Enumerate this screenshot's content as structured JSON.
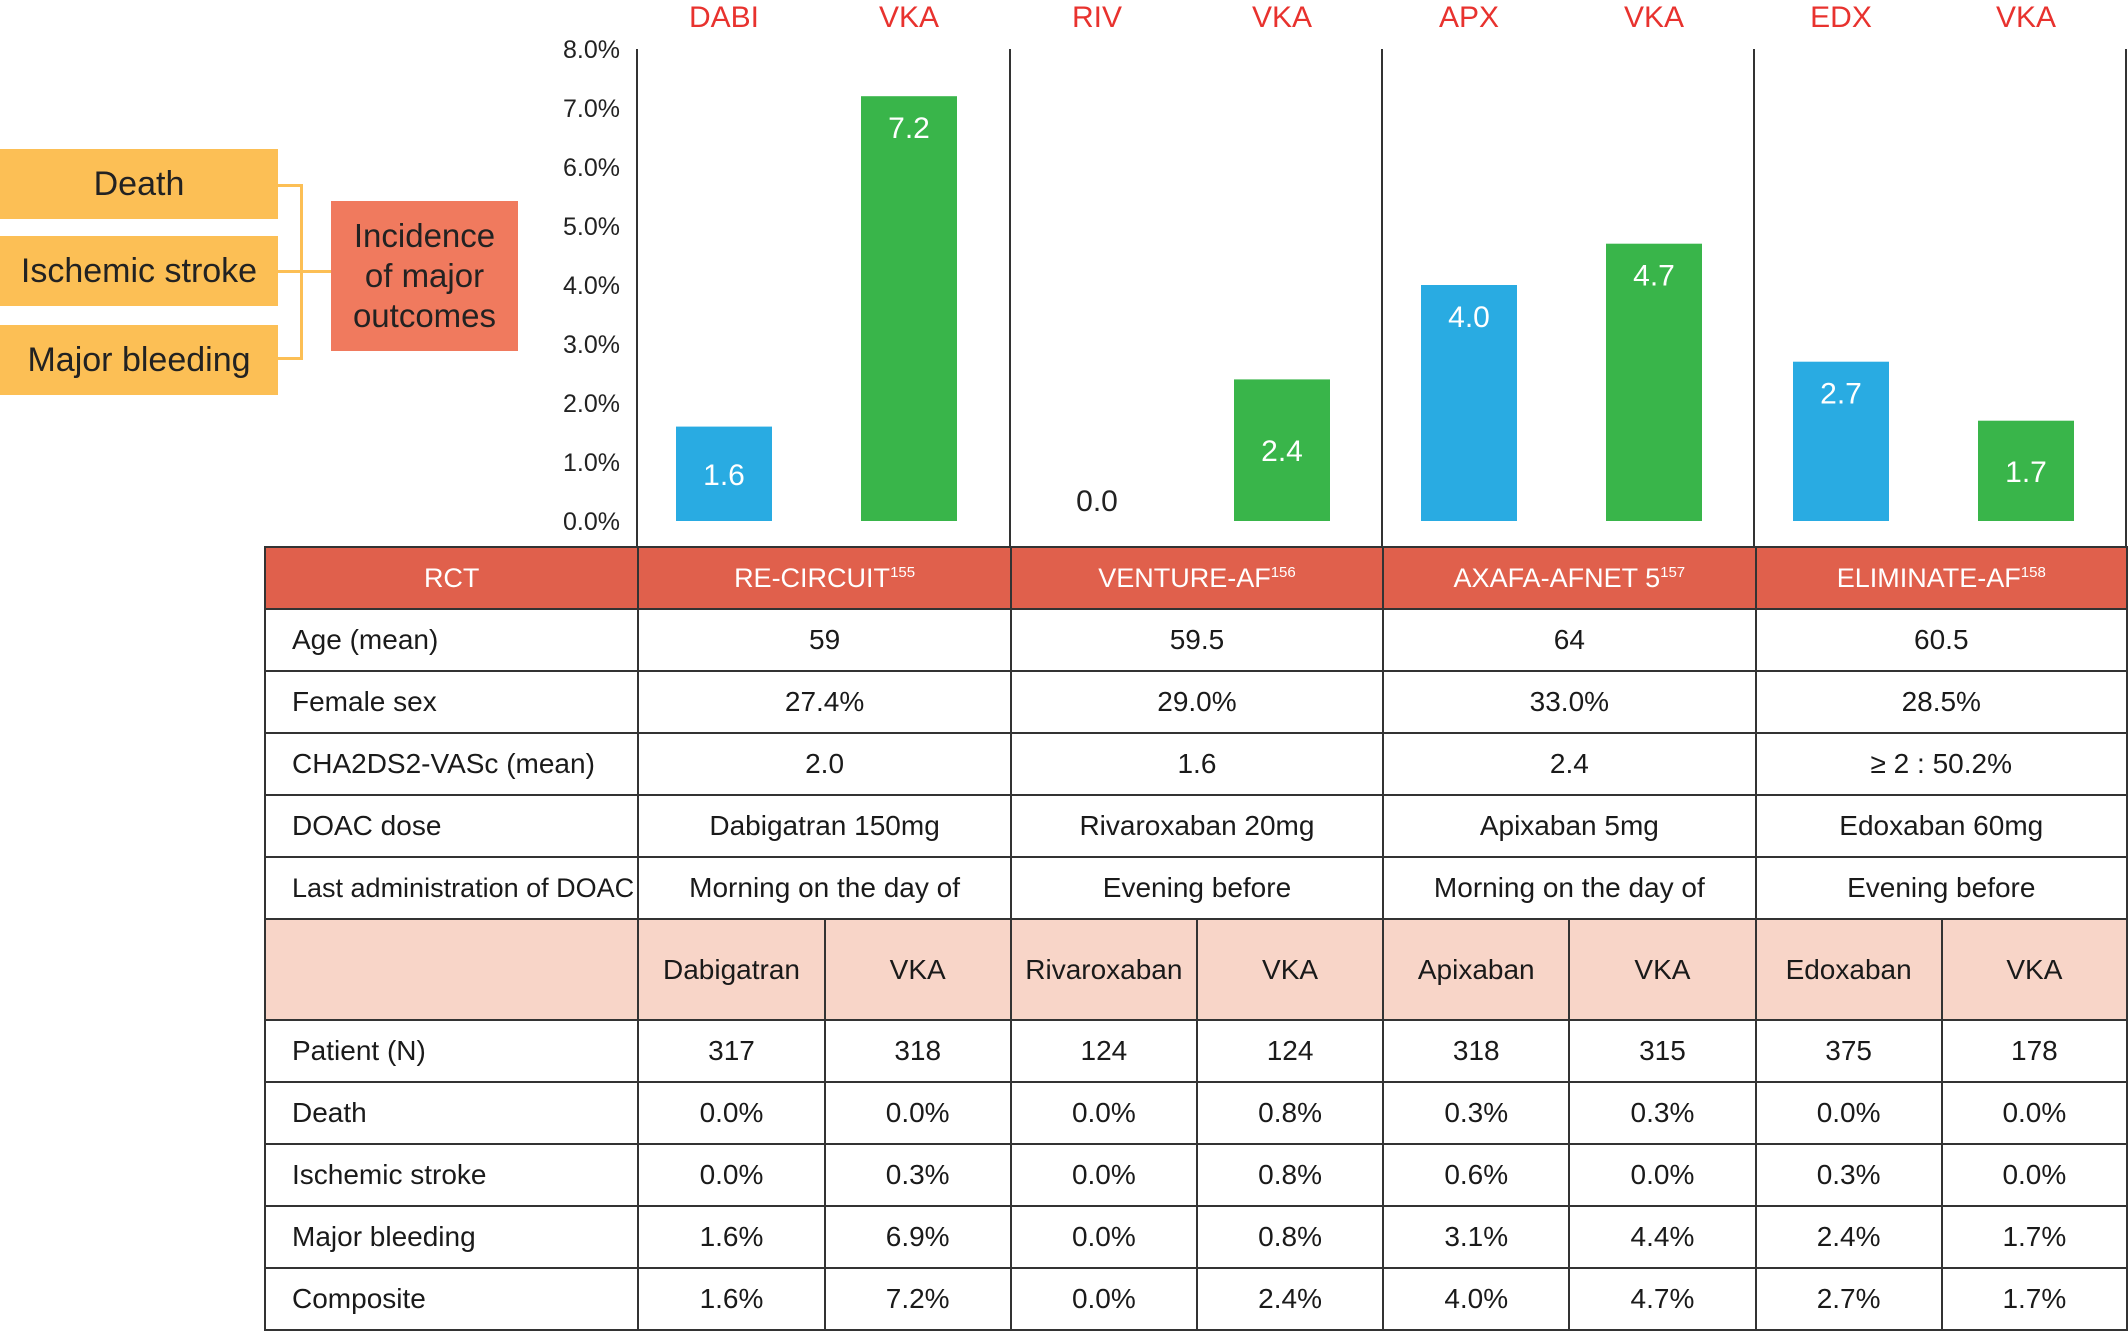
{
  "outcome_boxes": [
    "Death",
    "Ischemic stroke",
    "Major bleeding"
  ],
  "incidence_box": [
    "Incidence",
    "of major",
    "outcomes"
  ],
  "colors": {
    "doac": "#29abe2",
    "vka": "#39b54a",
    "header": "#e0604c",
    "drug_row": "#f8d5c8",
    "group_label": "#e8322e"
  },
  "chart_data": {
    "type": "bar",
    "ylim": [
      0,
      8
    ],
    "yticks": [
      "0.0%",
      "1.0%",
      "2.0%",
      "3.0%",
      "4.0%",
      "5.0%",
      "6.0%",
      "7.0%",
      "8.0%"
    ],
    "groups": [
      {
        "bars": [
          {
            "label": "DABI",
            "value": 1.6,
            "text": "1.6",
            "kind": "doac"
          },
          {
            "label": "VKA",
            "value": 7.2,
            "text": "7.2",
            "kind": "vka"
          }
        ]
      },
      {
        "bars": [
          {
            "label": "RIV",
            "value": 0.0,
            "text": "0.0",
            "kind": "doac"
          },
          {
            "label": "VKA",
            "value": 2.4,
            "text": "2.4",
            "kind": "vka"
          }
        ]
      },
      {
        "bars": [
          {
            "label": "APX",
            "value": 4.0,
            "text": "4.0",
            "kind": "doac"
          },
          {
            "label": "VKA",
            "value": 4.7,
            "text": "4.7",
            "kind": "vka"
          }
        ]
      },
      {
        "bars": [
          {
            "label": "EDX",
            "value": 2.7,
            "text": "2.7",
            "kind": "doac"
          },
          {
            "label": "VKA",
            "value": 1.7,
            "text": "1.7",
            "kind": "vka"
          }
        ]
      }
    ]
  },
  "table": {
    "rct_label": "RCT",
    "trials": [
      {
        "name": "RE-CIRCUIT",
        "ref": "155"
      },
      {
        "name": "VENTURE-AF",
        "ref": "156"
      },
      {
        "name": "AXAFA-AFNET 5",
        "ref": "157"
      },
      {
        "name": "ELIMINATE-AF",
        "ref": "158"
      }
    ],
    "info_rows": [
      {
        "label": "Age (mean)",
        "values": [
          "59",
          "59.5",
          "64",
          "60.5"
        ]
      },
      {
        "label": "Female sex",
        "values": [
          "27.4%",
          "29.0%",
          "33.0%",
          "28.5%"
        ]
      },
      {
        "label": "CHA2DS2-VASc (mean)",
        "values": [
          "2.0",
          "1.6",
          "2.4",
          "≥ 2 : 50.2%"
        ]
      },
      {
        "label": "DOAC dose",
        "values": [
          "Dabigatran 150mg",
          "Rivaroxaban 20mg",
          "Apixaban 5mg",
          "Edoxaban 60mg"
        ]
      },
      {
        "label": "Last administration of DOAC",
        "values": [
          "Morning on the day of",
          "Evening before",
          "Morning on the day of",
          "Evening before"
        ]
      }
    ],
    "drug_row": [
      "Dabigatran",
      "VKA",
      "Rivaroxaban",
      "VKA",
      "Apixaban",
      "VKA",
      "Edoxaban",
      "VKA"
    ],
    "outcome_rows": [
      {
        "label": "Patient (N)",
        "values": [
          "317",
          "318",
          "124",
          "124",
          "318",
          "315",
          "375",
          "178"
        ]
      },
      {
        "label": "Death",
        "values": [
          "0.0%",
          "0.0%",
          "0.0%",
          "0.8%",
          "0.3%",
          "0.3%",
          "0.0%",
          "0.0%"
        ]
      },
      {
        "label": "Ischemic stroke",
        "values": [
          "0.0%",
          "0.3%",
          "0.0%",
          "0.8%",
          "0.6%",
          "0.0%",
          "0.3%",
          "0.0%"
        ]
      },
      {
        "label": "Major bleeding",
        "values": [
          "1.6%",
          "6.9%",
          "0.0%",
          "0.8%",
          "3.1%",
          "4.4%",
          "2.4%",
          "1.7%"
        ]
      },
      {
        "label": "Composite",
        "values": [
          "1.6%",
          "7.2%",
          "0.0%",
          "2.4%",
          "4.0%",
          "4.7%",
          "2.7%",
          "1.7%"
        ]
      }
    ]
  }
}
